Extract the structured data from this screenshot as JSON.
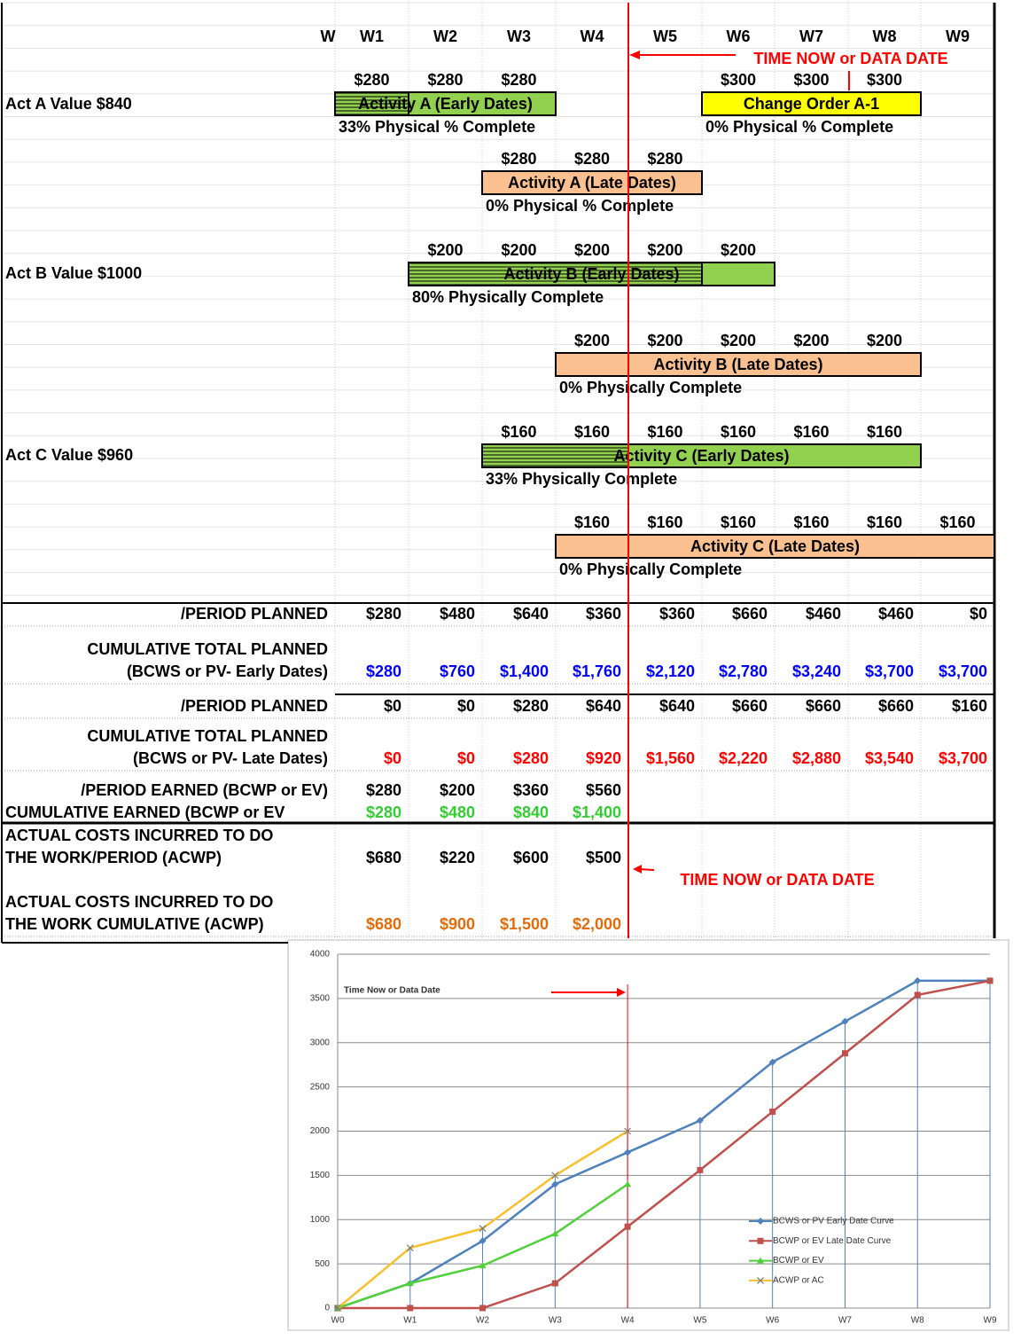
{
  "header": {
    "weeks": [
      "W",
      "W1",
      "W2",
      "W3",
      "W4",
      "W5",
      "W6",
      "W7",
      "W8",
      "W9"
    ],
    "time_now_labels": [
      "TIME NOW or DATA DATE",
      "TIME NOW or DATA DATE"
    ]
  },
  "row_labels": [
    "Act A  Value $840",
    "Act B Value $1000",
    "Act C Value  $960"
  ],
  "activities": [
    {
      "label": "Activity A (Early Dates)",
      "values": [
        "$280",
        "$280",
        "$280"
      ],
      "note": "33% Physical % Complete"
    },
    {
      "label": "Change Order A-1",
      "values": [
        "$300",
        "$300",
        "$300"
      ],
      "note": "0% Physical % Complete"
    },
    {
      "label": "Activity A (Late Dates)",
      "values": [
        "$280",
        "$280",
        "$280"
      ],
      "note": "0% Physical % Complete"
    },
    {
      "label": "Activity B (Early Dates)",
      "values": [
        "$200",
        "$200",
        "$200",
        "$200",
        "$200"
      ],
      "note": "80% Physically Complete"
    },
    {
      "label": "Activity B (Late Dates)",
      "values": [
        "$200",
        "$200",
        "$200",
        "$200",
        "$200"
      ],
      "note": "0% Physically Complete"
    },
    {
      "label": "Activity C (Early Dates)",
      "values": [
        "$160",
        "$160",
        "$160",
        "$160",
        "$160",
        "$160"
      ],
      "note": "33% Physically Complete"
    },
    {
      "label": "Activity C (Late Dates)",
      "values": [
        "$160",
        "$160",
        "$160",
        "$160",
        "$160",
        "$160"
      ],
      "note": "0% Physically Complete"
    }
  ],
  "summary": [
    {
      "label": [
        "/PERIOD PLANNED"
      ],
      "values": [
        "$280",
        "$480",
        "$640",
        "$360",
        "$360",
        "$660",
        "$460",
        "$460",
        "$0"
      ]
    },
    {
      "label": [
        "CUMULATIVE TOTAL PLANNED",
        "(BCWS or PV- Early Dates)"
      ],
      "values": [
        "$280",
        "$760",
        "$1,400",
        "$1,760",
        "$2,120",
        "$2,780",
        "$3,240",
        "$3,700",
        "$3,700"
      ]
    },
    {
      "label": [
        "/PERIOD PLANNED"
      ],
      "values": [
        "$0",
        "$0",
        "$280",
        "$640",
        "$640",
        "$660",
        "$660",
        "$660",
        "$160"
      ]
    },
    {
      "label": [
        "CUMULATIVE TOTAL PLANNED",
        "(BCWS or PV- Late Dates)"
      ],
      "values": [
        "$0",
        "$0",
        "$280",
        "$920",
        "$1,560",
        "$2,220",
        "$2,880",
        "$3,540",
        "$3,700"
      ]
    },
    {
      "label": [
        "/PERIOD EARNED (BCWP or EV)"
      ],
      "values": [
        "$280",
        "$200",
        "$360",
        "$560"
      ]
    },
    {
      "label": [
        "CUMULATIVE EARNED (BCWP or EV"
      ],
      "values": [
        "$280",
        "$480",
        "$840",
        "$1,400"
      ]
    },
    {
      "label": [
        "ACTUAL COSTS INCURRED TO DO",
        "THE WORK/PERIOD (ACWP)"
      ],
      "values": [
        "$680",
        "$220",
        "$600",
        "$500"
      ]
    },
    {
      "label": [
        "ACTUAL COSTS INCURRED TO DO",
        "THE WORK CUMULATIVE (ACWP)"
      ],
      "values": [
        "$680",
        "$900",
        "$1,500",
        "$2,000"
      ]
    }
  ],
  "chart_data": {
    "type": "line",
    "annotation": "Time Now or Data Date",
    "categories": [
      "W0",
      "W1",
      "W2",
      "W3",
      "W4",
      "W5",
      "W6",
      "W7",
      "W8",
      "W9"
    ],
    "ylim": [
      0,
      4000
    ],
    "yticks": [
      0,
      500,
      1000,
      1500,
      2000,
      2500,
      3000,
      3500,
      4000
    ],
    "grid": true,
    "series": [
      {
        "name": "BCWS or PV Early Date Curve",
        "color": "#4f81bd",
        "marker": "diamond",
        "values": [
          0,
          280,
          760,
          1400,
          1760,
          2120,
          2780,
          3240,
          3700,
          3700
        ]
      },
      {
        "name": "BCWP or EV Late Date Curve",
        "color": "#c0504d",
        "marker": "square",
        "values": [
          0,
          0,
          0,
          280,
          920,
          1560,
          2220,
          2880,
          3540,
          3700
        ]
      },
      {
        "name": "BCWP or EV",
        "color": "#4fd13a",
        "marker": "triangle",
        "values": [
          0,
          280,
          480,
          840,
          1400,
          null,
          null,
          null,
          null,
          null
        ]
      },
      {
        "name": "ACWP or AC",
        "color": "#f7c02c",
        "marker": "x",
        "values": [
          0,
          680,
          900,
          1500,
          2000,
          null,
          null,
          null,
          null,
          null
        ]
      }
    ]
  }
}
